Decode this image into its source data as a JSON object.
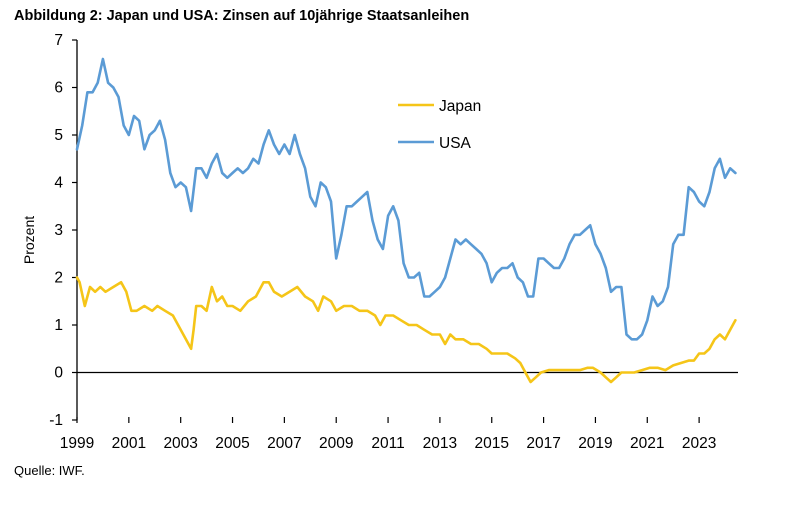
{
  "title": "Abbildung 2: Japan und USA: Zinsen auf 10jährige Staatsanleihen",
  "source": "Quelle: IWF.",
  "chart_data": {
    "type": "line",
    "title": "Abbildung 2: Japan und USA: Zinsen auf 10jährige Staatsanleihen",
    "xlabel": "",
    "ylabel": "Prozent",
    "ylim": [
      -1,
      7
    ],
    "yticks": [
      -1,
      0,
      1,
      2,
      3,
      4,
      5,
      6,
      7
    ],
    "xlim": [
      1999.0,
      2024.5
    ],
    "xticks": [
      1999,
      2001,
      2003,
      2005,
      2007,
      2009,
      2011,
      2013,
      2015,
      2017,
      2019,
      2021,
      2023
    ],
    "xtick_labels": [
      "1999",
      "2001",
      "2003",
      "2005",
      "2007",
      "2009",
      "2011",
      "2013",
      "2015",
      "2017",
      "2019",
      "2021",
      "2023"
    ],
    "grid": false,
    "legend_position": "upper-center",
    "series": [
      {
        "name": "Japan",
        "color": "#F5C518",
        "x": [
          1999.0,
          1999.1,
          1999.3,
          1999.5,
          1999.7,
          1999.9,
          2000.1,
          2000.4,
          2000.7,
          2000.9,
          2001.1,
          2001.3,
          2001.6,
          2001.9,
          2002.1,
          2002.4,
          2002.7,
          2002.9,
          2003.2,
          2003.4,
          2003.5,
          2003.6,
          2003.8,
          2004.0,
          2004.2,
          2004.4,
          2004.6,
          2004.8,
          2005.0,
          2005.3,
          2005.6,
          2005.9,
          2006.2,
          2006.4,
          2006.6,
          2006.9,
          2007.2,
          2007.5,
          2007.8,
          2008.1,
          2008.3,
          2008.5,
          2008.8,
          2009.0,
          2009.3,
          2009.6,
          2009.9,
          2010.2,
          2010.5,
          2010.7,
          2010.9,
          2011.2,
          2011.5,
          2011.8,
          2012.1,
          2012.4,
          2012.7,
          2013.0,
          2013.2,
          2013.4,
          2013.6,
          2013.9,
          2014.2,
          2014.5,
          2014.8,
          2015.0,
          2015.3,
          2015.6,
          2015.9,
          2016.1,
          2016.3,
          2016.5,
          2016.7,
          2016.9,
          2017.2,
          2017.5,
          2017.8,
          2018.1,
          2018.4,
          2018.7,
          2018.9,
          2019.2,
          2019.4,
          2019.6,
          2019.8,
          2020.0,
          2020.2,
          2020.5,
          2020.8,
          2021.1,
          2021.4,
          2021.7,
          2022.0,
          2022.3,
          2022.6,
          2022.8,
          2023.0,
          2023.2,
          2023.4,
          2023.6,
          2023.8,
          2024.0,
          2024.2,
          2024.4
        ],
        "values": [
          2.0,
          1.9,
          1.4,
          1.8,
          1.7,
          1.8,
          1.7,
          1.8,
          1.9,
          1.7,
          1.3,
          1.3,
          1.4,
          1.3,
          1.4,
          1.3,
          1.2,
          1.0,
          0.7,
          0.5,
          0.9,
          1.4,
          1.4,
          1.3,
          1.8,
          1.5,
          1.6,
          1.4,
          1.4,
          1.3,
          1.5,
          1.6,
          1.9,
          1.9,
          1.7,
          1.6,
          1.7,
          1.8,
          1.6,
          1.5,
          1.3,
          1.6,
          1.5,
          1.3,
          1.4,
          1.4,
          1.3,
          1.3,
          1.2,
          1.0,
          1.2,
          1.2,
          1.1,
          1.0,
          1.0,
          0.9,
          0.8,
          0.8,
          0.6,
          0.8,
          0.7,
          0.7,
          0.6,
          0.6,
          0.5,
          0.4,
          0.4,
          0.4,
          0.3,
          0.2,
          0.0,
          -0.2,
          -0.1,
          0.0,
          0.05,
          0.05,
          0.05,
          0.05,
          0.05,
          0.1,
          0.1,
          0.0,
          -0.1,
          -0.2,
          -0.1,
          0.0,
          0.0,
          0.0,
          0.05,
          0.1,
          0.1,
          0.05,
          0.15,
          0.2,
          0.25,
          0.25,
          0.4,
          0.4,
          0.5,
          0.7,
          0.8,
          0.7,
          0.9,
          1.1
        ]
      },
      {
        "name": "USA",
        "color": "#5B9BD5",
        "x": [
          1999.0,
          1999.2,
          1999.4,
          1999.6,
          1999.8,
          2000.0,
          2000.2,
          2000.4,
          2000.6,
          2000.8,
          2001.0,
          2001.2,
          2001.4,
          2001.6,
          2001.8,
          2002.0,
          2002.2,
          2002.4,
          2002.6,
          2002.8,
          2003.0,
          2003.2,
          2003.4,
          2003.6,
          2003.8,
          2004.0,
          2004.2,
          2004.4,
          2004.6,
          2004.8,
          2005.0,
          2005.2,
          2005.4,
          2005.6,
          2005.8,
          2006.0,
          2006.2,
          2006.4,
          2006.6,
          2006.8,
          2007.0,
          2007.2,
          2007.4,
          2007.6,
          2007.8,
          2008.0,
          2008.2,
          2008.4,
          2008.6,
          2008.8,
          2009.0,
          2009.2,
          2009.4,
          2009.6,
          2009.8,
          2010.0,
          2010.2,
          2010.4,
          2010.6,
          2010.8,
          2011.0,
          2011.2,
          2011.4,
          2011.6,
          2011.8,
          2012.0,
          2012.2,
          2012.4,
          2012.6,
          2012.8,
          2013.0,
          2013.2,
          2013.4,
          2013.6,
          2013.8,
          2014.0,
          2014.2,
          2014.4,
          2014.6,
          2014.8,
          2015.0,
          2015.2,
          2015.4,
          2015.6,
          2015.8,
          2016.0,
          2016.2,
          2016.4,
          2016.6,
          2016.8,
          2017.0,
          2017.2,
          2017.4,
          2017.6,
          2017.8,
          2018.0,
          2018.2,
          2018.4,
          2018.6,
          2018.8,
          2019.0,
          2019.2,
          2019.4,
          2019.6,
          2019.8,
          2020.0,
          2020.2,
          2020.4,
          2020.6,
          2020.8,
          2021.0,
          2021.2,
          2021.4,
          2021.6,
          2021.8,
          2022.0,
          2022.2,
          2022.4,
          2022.6,
          2022.8,
          2023.0,
          2023.2,
          2023.4,
          2023.6,
          2023.8,
          2024.0,
          2024.2,
          2024.4
        ],
        "values": [
          4.7,
          5.2,
          5.9,
          5.9,
          6.1,
          6.6,
          6.1,
          6.0,
          5.8,
          5.2,
          5.0,
          5.4,
          5.3,
          4.7,
          5.0,
          5.1,
          5.3,
          4.9,
          4.2,
          3.9,
          4.0,
          3.9,
          3.4,
          4.3,
          4.3,
          4.1,
          4.4,
          4.6,
          4.2,
          4.1,
          4.2,
          4.3,
          4.2,
          4.3,
          4.5,
          4.4,
          4.8,
          5.1,
          4.8,
          4.6,
          4.8,
          4.6,
          5.0,
          4.6,
          4.3,
          3.7,
          3.5,
          4.0,
          3.9,
          3.6,
          2.4,
          2.9,
          3.5,
          3.5,
          3.6,
          3.7,
          3.8,
          3.2,
          2.8,
          2.6,
          3.3,
          3.5,
          3.2,
          2.3,
          2.0,
          2.0,
          2.1,
          1.6,
          1.6,
          1.7,
          1.8,
          2.0,
          2.4,
          2.8,
          2.7,
          2.8,
          2.7,
          2.6,
          2.5,
          2.3,
          1.9,
          2.1,
          2.2,
          2.2,
          2.3,
          2.0,
          1.9,
          1.6,
          1.6,
          2.4,
          2.4,
          2.3,
          2.2,
          2.2,
          2.4,
          2.7,
          2.9,
          2.9,
          3.0,
          3.1,
          2.7,
          2.5,
          2.2,
          1.7,
          1.8,
          1.8,
          0.8,
          0.7,
          0.7,
          0.8,
          1.1,
          1.6,
          1.4,
          1.5,
          1.8,
          2.7,
          2.9,
          2.9,
          3.9,
          3.8,
          3.6,
          3.5,
          3.8,
          4.3,
          4.5,
          4.1,
          4.3,
          4.2
        ]
      }
    ]
  }
}
